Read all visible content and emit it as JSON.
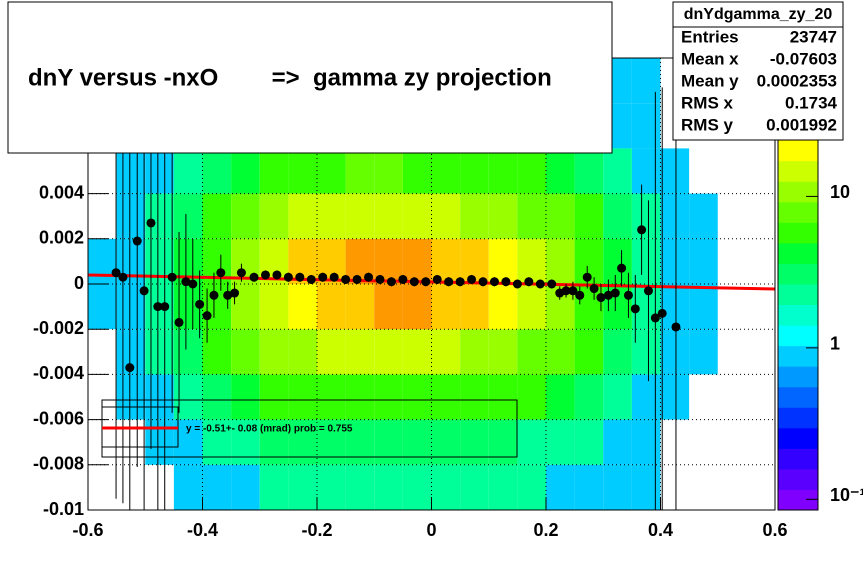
{
  "chart_data": {
    "type": "colz-profile",
    "title": "dnY versus -nxO        =>  gamma zy projection",
    "stats": {
      "name": "dnYdgamma_zy_20",
      "rows": [
        [
          "Entries",
          "23747"
        ],
        [
          "Mean x",
          "-0.07603"
        ],
        [
          "Mean y",
          "0.0002353"
        ],
        [
          "RMS x",
          "0.1734"
        ],
        [
          "RMS y",
          "0.001992"
        ]
      ]
    },
    "xlim": [
      -0.6,
      0.6
    ],
    "ylim": [
      -0.01,
      0.01
    ],
    "xticks": [
      -0.6,
      -0.4,
      -0.2,
      0,
      0.2,
      0.4,
      0.6
    ],
    "yticks": [
      -0.01,
      -0.008,
      -0.006,
      -0.004,
      -0.002,
      0,
      0.002,
      0.004
    ],
    "grid": true,
    "hist2d": {
      "xbins": [
        -0.6,
        -0.55,
        -0.5,
        -0.45,
        -0.4,
        -0.35,
        -0.3,
        -0.25,
        -0.2,
        -0.15,
        -0.1,
        -0.05,
        0,
        0.05,
        0.1,
        0.15,
        0.2,
        0.25,
        0.3,
        0.35,
        0.4,
        0.45,
        0.5,
        0.55,
        0.6
      ],
      "ybins": [
        -0.01,
        -0.008,
        -0.006,
        -0.004,
        -0.002,
        0,
        0.002,
        0.004,
        0.006,
        0.008,
        0.01
      ],
      "counts": [
        [
          0,
          0,
          0,
          1,
          1,
          1,
          2,
          2,
          2,
          2,
          2,
          2,
          2,
          2,
          2,
          2,
          1,
          1,
          1,
          1,
          0,
          0,
          0,
          0
        ],
        [
          0,
          0,
          1,
          1,
          2,
          2,
          3,
          3,
          3,
          3,
          3,
          3,
          3,
          3,
          3,
          2,
          2,
          2,
          1,
          1,
          0,
          0,
          0,
          0
        ],
        [
          0,
          1,
          1,
          2,
          3,
          4,
          5,
          6,
          6,
          6,
          6,
          6,
          6,
          6,
          5,
          5,
          4,
          3,
          2,
          1,
          1,
          0,
          0,
          0
        ],
        [
          0,
          1,
          2,
          3,
          5,
          7,
          10,
          12,
          13,
          14,
          14,
          14,
          13,
          12,
          11,
          9,
          7,
          5,
          3,
          2,
          1,
          1,
          0,
          0
        ],
        [
          1,
          1,
          2,
          4,
          6,
          10,
          16,
          22,
          28,
          32,
          34,
          34,
          32,
          28,
          22,
          16,
          10,
          6,
          4,
          2,
          1,
          1,
          0,
          0
        ],
        [
          1,
          1,
          2,
          4,
          6,
          10,
          16,
          24,
          30,
          36,
          38,
          36,
          32,
          28,
          22,
          16,
          10,
          6,
          4,
          2,
          1,
          1,
          0,
          0
        ],
        [
          0,
          1,
          2,
          3,
          5,
          7,
          10,
          13,
          15,
          16,
          16,
          16,
          14,
          12,
          11,
          9,
          7,
          5,
          3,
          2,
          1,
          1,
          0,
          0
        ],
        [
          0,
          1,
          1,
          2,
          3,
          4,
          5,
          6,
          6,
          7,
          7,
          6,
          6,
          6,
          5,
          5,
          4,
          3,
          2,
          1,
          1,
          0,
          0,
          0
        ],
        [
          0,
          0,
          1,
          1,
          2,
          2,
          2,
          3,
          3,
          3,
          3,
          3,
          3,
          3,
          3,
          2,
          2,
          2,
          1,
          1,
          0,
          0,
          0,
          0
        ],
        [
          0,
          0,
          0,
          1,
          1,
          1,
          1,
          1,
          1,
          2,
          2,
          1,
          1,
          1,
          1,
          1,
          1,
          1,
          1,
          1,
          0,
          0,
          0,
          0
        ]
      ]
    },
    "zlim": [
      0.085,
      82
    ],
    "zlog": true,
    "zticks": [
      {
        "value": 0.1,
        "label": "10⁻¹"
      },
      1,
      10
    ],
    "palette": [
      "#7f00ff",
      "#5a00ff",
      "#3300ff",
      "#0000ff",
      "#0033ff",
      "#0066ff",
      "#0099ff",
      "#00ccff",
      "#00ffff",
      "#00ffcc",
      "#00ff99",
      "#00ff66",
      "#00ff33",
      "#33ff00",
      "#66ff00",
      "#99ff00",
      "#ccff00",
      "#ffff00",
      "#ffcc00",
      "#ff9900",
      "#ff6600",
      "#ff3300"
    ],
    "profile": {
      "color": "#000000",
      "x": [
        -0.551,
        -0.539,
        -0.527,
        -0.514,
        -0.502,
        -0.49,
        -0.478,
        -0.466,
        -0.453,
        -0.441,
        -0.429,
        -0.417,
        -0.405,
        -0.392,
        -0.38,
        -0.368,
        -0.356,
        -0.344,
        -0.332,
        -0.31,
        -0.29,
        -0.27,
        -0.25,
        -0.23,
        -0.21,
        -0.19,
        -0.17,
        -0.15,
        -0.13,
        -0.11,
        -0.09,
        -0.07,
        -0.05,
        -0.03,
        -0.01,
        0.01,
        0.03,
        0.05,
        0.07,
        0.09,
        0.11,
        0.13,
        0.15,
        0.17,
        0.19,
        0.21,
        0.224,
        0.235,
        0.247,
        0.259,
        0.272,
        0.284,
        0.296,
        0.309,
        0.321,
        0.332,
        0.344,
        0.356,
        0.367,
        0.379,
        0.391,
        0.403,
        0.427
      ],
      "values": [
        0.0005,
        0.0003,
        -0.0037,
        0.0019,
        -0.0003,
        0.0027,
        -0.001,
        -0.001,
        0.0003,
        -0.0017,
        0.0001,
        0,
        -0.0009,
        -0.0014,
        -0.0005,
        0.0005,
        -0.0005,
        -0.0004,
        0.0005,
        0.0003,
        0.0004,
        0.0004,
        0.0003,
        0.0003,
        0.0002,
        0.0003,
        0.0003,
        0.0002,
        0.0002,
        0.0003,
        0.0002,
        0.0001,
        0.0002,
        0.0001,
        0.0001,
        0.0002,
        0.0001,
        0.0001,
        0.0002,
        0.0001,
        0.0001,
        0.0001,
        0,
        0.0001,
        0,
        0,
        -0.0004,
        -0.0003,
        -0.0003,
        -0.0005,
        0.0003,
        -0.0002,
        -0.0006,
        -0.0005,
        -0.0004,
        0.0007,
        -0.0005,
        -0.0011,
        0.0024,
        -0.0003,
        -0.0015,
        -0.0013,
        -0.0019
      ],
      "errors": [
        0.01,
        0.01,
        0.01,
        0.01,
        0.01,
        0.01,
        0.01,
        0.01,
        0.006,
        0.004,
        0.003,
        0.002,
        0.0015,
        0.0012,
        0.001,
        0.0008,
        0.0006,
        0.0005,
        0.0004,
        0.0002,
        0.0002,
        0.0002,
        0.0002,
        0.0002,
        0.0002,
        0.0002,
        0.0002,
        0.0002,
        0.0002,
        0.0002,
        0.0002,
        0.0002,
        0.0002,
        0.0002,
        0.0002,
        0.0002,
        0.0002,
        0.0002,
        0.0002,
        0.0002,
        0.0002,
        0.0002,
        0.0002,
        0.0002,
        0.0002,
        0.0002,
        0.0003,
        0.0003,
        0.0004,
        0.0004,
        0.0005,
        0.0005,
        0.0006,
        0.0007,
        0.0008,
        0.0008,
        0.001,
        0.0015,
        0.002,
        0.004,
        0.01,
        0.01,
        0.01
      ]
    },
    "fit": {
      "color": "#ff0000",
      "x": [
        -0.6,
        0.6
      ],
      "y": [
        0.0004,
        -0.00022
      ],
      "label": "y = -0.51+- 0.08 (mrad) prob = 0.755"
    }
  }
}
